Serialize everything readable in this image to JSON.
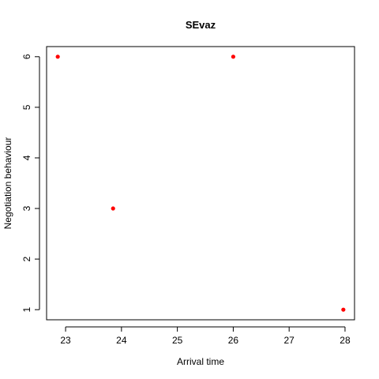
{
  "chart_data": {
    "type": "scatter",
    "title": "SEvaz",
    "xlabel": "Arrival time",
    "ylabel": "Negotiation behaviour",
    "xlim": [
      22.66,
      28.17
    ],
    "ylim": [
      0.8,
      6.2
    ],
    "xticks": [
      23,
      24,
      25,
      26,
      27,
      28
    ],
    "yticks": [
      1,
      2,
      3,
      4,
      5,
      6
    ],
    "grid": false,
    "series": [
      {
        "color": "#ff0000",
        "points": [
          {
            "x": 22.86,
            "y": 6
          },
          {
            "x": 23.85,
            "y": 3
          },
          {
            "x": 26.0,
            "y": 6
          },
          {
            "x": 27.97,
            "y": 1
          }
        ]
      }
    ]
  }
}
